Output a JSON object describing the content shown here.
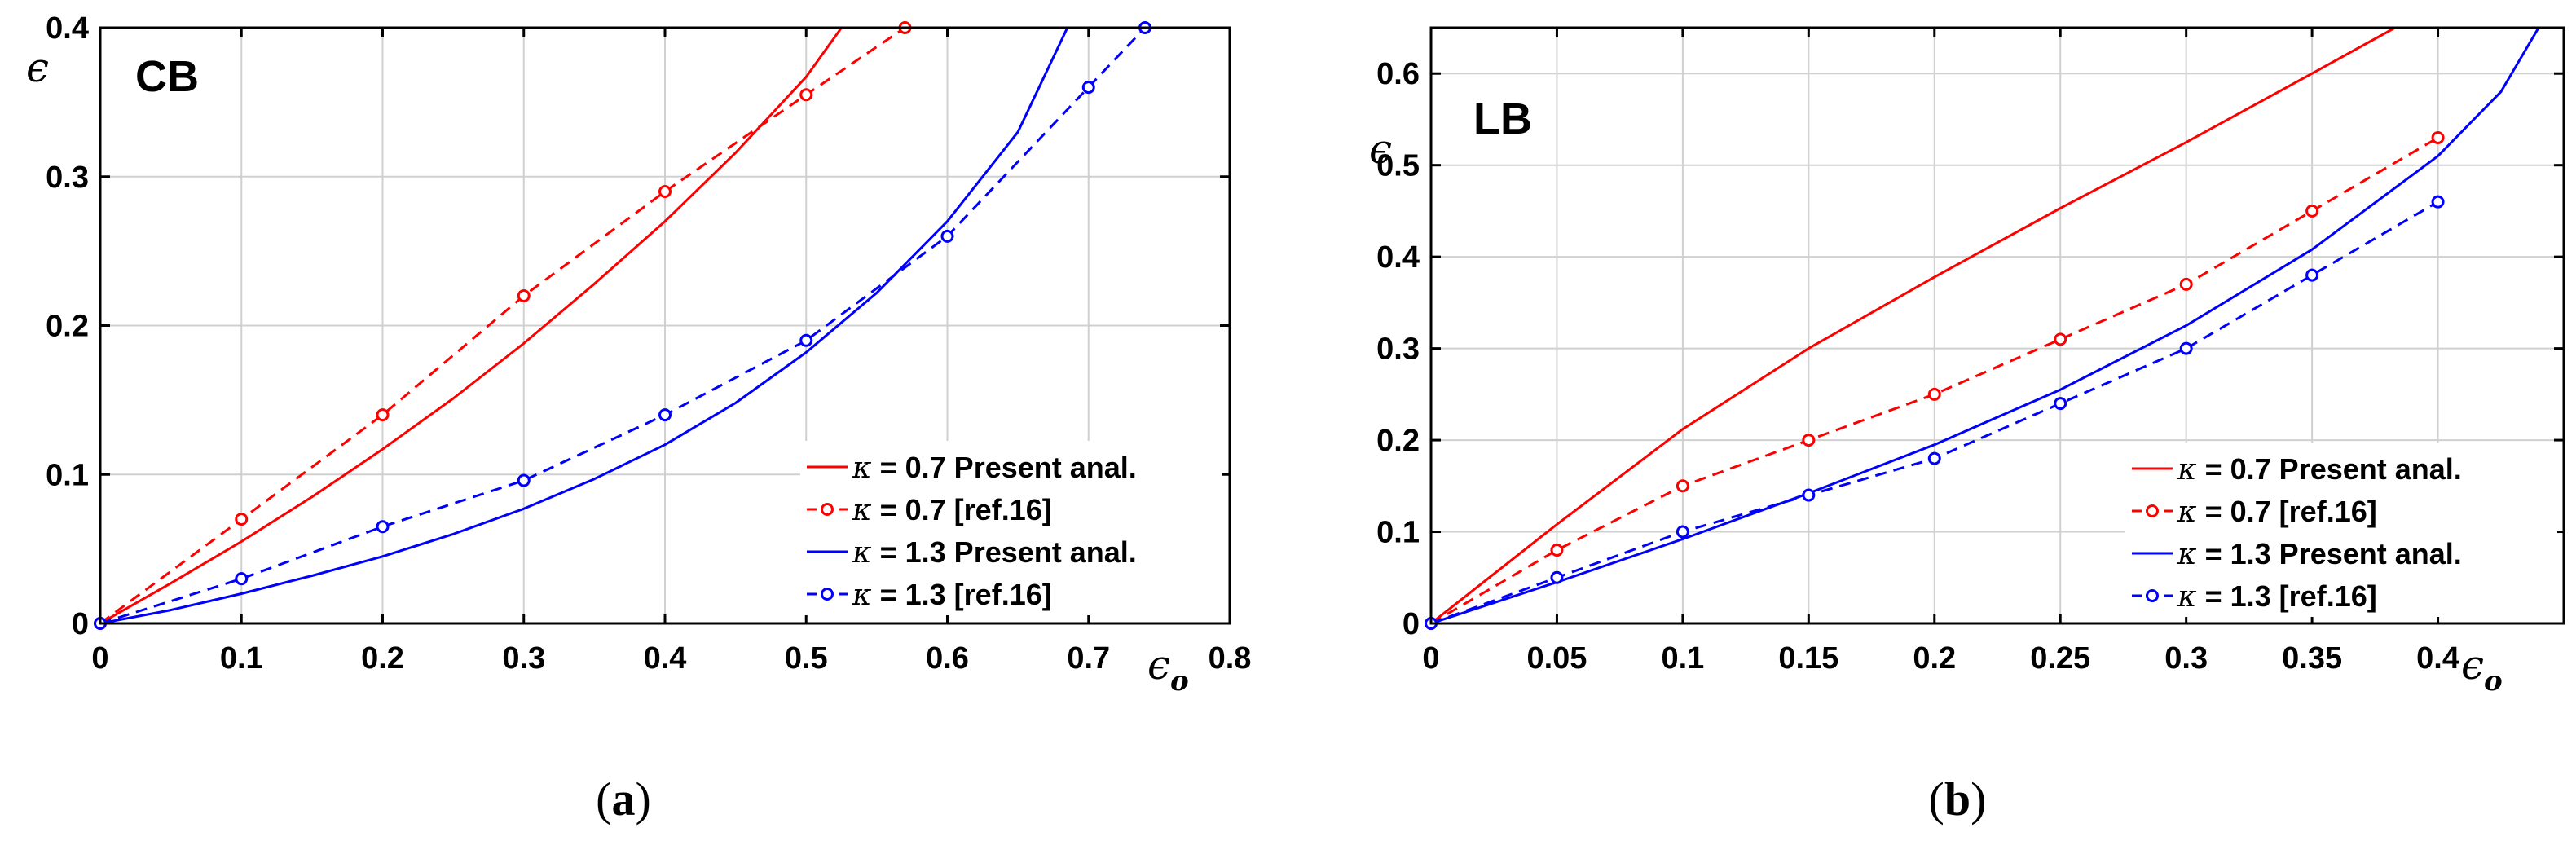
{
  "legend": {
    "kappa_symbol": "κ",
    "entries": [
      {
        "series_index": 0,
        "label": " = 0.7 Present anal."
      },
      {
        "series_index": 1,
        "label": " = 0.7 [ref.16]"
      },
      {
        "series_index": 2,
        "label": " = 1.3 Present anal."
      },
      {
        "series_index": 3,
        "label": " = 1.3 [ref.16]"
      }
    ]
  },
  "colors": {
    "red": "#ff0000",
    "blue": "#0000ff",
    "grid": "#d0d0d0",
    "axis": "#000000"
  },
  "chart_data": [
    {
      "type": "line",
      "panel_label": "CB",
      "caption": {
        "open": "(",
        "letter": "a",
        "close": ")"
      },
      "xlabel": {
        "base": "ϵ",
        "sub": "o"
      },
      "ylabel": "ϵ",
      "xlim": [
        0,
        0.8
      ],
      "ylim": [
        0,
        0.4
      ],
      "xticks": [
        0,
        0.1,
        0.2,
        0.3,
        0.4,
        0.5,
        0.6,
        0.7,
        0.8
      ],
      "xtick_labels": [
        "0",
        "0.1",
        "0.2",
        "0.3",
        "0.4",
        "0.5",
        "0.6",
        "0.7",
        "0.8"
      ],
      "yticks": [
        0,
        0.1,
        0.2,
        0.3,
        0.4
      ],
      "ytick_labels": [
        "0",
        "0.1",
        "0.2",
        "0.3",
        "0.4"
      ],
      "grid": true,
      "legend_position": "lower-right",
      "series": [
        {
          "name": "κ = 0.7 Present anal.",
          "color": "red",
          "style": "solid",
          "markers": false,
          "x": [
            0,
            0.05,
            0.1,
            0.15,
            0.2,
            0.25,
            0.3,
            0.35,
            0.4,
            0.45,
            0.5,
            0.525
          ],
          "y": [
            0,
            0.027,
            0.055,
            0.085,
            0.117,
            0.151,
            0.188,
            0.228,
            0.27,
            0.316,
            0.367,
            0.4
          ]
        },
        {
          "name": "κ = 0.7 [ref.16]",
          "color": "red",
          "style": "dashed",
          "markers": true,
          "x": [
            0,
            0.1,
            0.2,
            0.3,
            0.4,
            0.5,
            0.57
          ],
          "y": [
            0,
            0.07,
            0.14,
            0.22,
            0.29,
            0.355,
            0.4
          ]
        },
        {
          "name": "κ = 1.3 Present anal.",
          "color": "blue",
          "style": "solid",
          "markers": false,
          "x": [
            0,
            0.05,
            0.1,
            0.15,
            0.2,
            0.25,
            0.3,
            0.35,
            0.4,
            0.45,
            0.5,
            0.55,
            0.6,
            0.65,
            0.685
          ],
          "y": [
            0,
            0.009,
            0.02,
            0.032,
            0.045,
            0.06,
            0.077,
            0.097,
            0.12,
            0.148,
            0.182,
            0.222,
            0.27,
            0.33,
            0.4
          ]
        },
        {
          "name": "κ = 1.3 [ref.16]",
          "color": "blue",
          "style": "dashed",
          "markers": true,
          "x": [
            0,
            0.1,
            0.2,
            0.3,
            0.4,
            0.5,
            0.6,
            0.7,
            0.74
          ],
          "y": [
            0,
            0.03,
            0.065,
            0.096,
            0.14,
            0.19,
            0.26,
            0.36,
            0.4
          ]
        }
      ]
    },
    {
      "type": "line",
      "panel_label": "LB",
      "caption": {
        "open": "(",
        "letter": "b",
        "close": ")"
      },
      "xlabel": {
        "base": "ϵ",
        "sub": "o"
      },
      "ylabel": "ϵ",
      "xlim": [
        0,
        0.45
      ],
      "ylim": [
        0,
        0.65
      ],
      "xticks": [
        0,
        0.05,
        0.1,
        0.15,
        0.2,
        0.25,
        0.3,
        0.35,
        0.4
      ],
      "xtick_labels": [
        "0",
        "0.05",
        "0.1",
        "0.15",
        "0.2",
        "0.25",
        "0.3",
        "0.35",
        "0.4"
      ],
      "yticks": [
        0,
        0.1,
        0.2,
        0.3,
        0.4,
        0.5,
        0.6
      ],
      "ytick_labels": [
        "0",
        "0.1",
        "0.2",
        "0.3",
        "0.4",
        "0.5",
        "0.6"
      ],
      "grid": true,
      "legend_position": "lower-right",
      "series": [
        {
          "name": "κ = 0.7 Present anal.",
          "color": "red",
          "style": "solid",
          "markers": false,
          "x": [
            0,
            0.05,
            0.1,
            0.15,
            0.2,
            0.25,
            0.3,
            0.35,
            0.383
          ],
          "y": [
            0,
            0.108,
            0.212,
            0.3,
            0.378,
            0.453,
            0.525,
            0.6,
            0.65
          ]
        },
        {
          "name": "κ = 0.7 [ref.16]",
          "color": "red",
          "style": "dashed",
          "markers": true,
          "x": [
            0,
            0.05,
            0.1,
            0.15,
            0.2,
            0.25,
            0.3,
            0.35,
            0.4
          ],
          "y": [
            0,
            0.08,
            0.15,
            0.2,
            0.25,
            0.31,
            0.37,
            0.45,
            0.53
          ]
        },
        {
          "name": "κ = 1.3 Present anal.",
          "color": "blue",
          "style": "solid",
          "markers": false,
          "x": [
            0,
            0.05,
            0.1,
            0.15,
            0.2,
            0.25,
            0.3,
            0.35,
            0.4,
            0.425,
            0.44
          ],
          "y": [
            0,
            0.045,
            0.092,
            0.142,
            0.195,
            0.255,
            0.325,
            0.408,
            0.51,
            0.58,
            0.65
          ]
        },
        {
          "name": "κ = 1.3 [ref.16]",
          "color": "blue",
          "style": "dashed",
          "markers": true,
          "x": [
            0,
            0.05,
            0.1,
            0.15,
            0.2,
            0.25,
            0.3,
            0.35,
            0.4
          ],
          "y": [
            0,
            0.05,
            0.1,
            0.14,
            0.18,
            0.24,
            0.3,
            0.38,
            0.46
          ]
        }
      ]
    }
  ]
}
